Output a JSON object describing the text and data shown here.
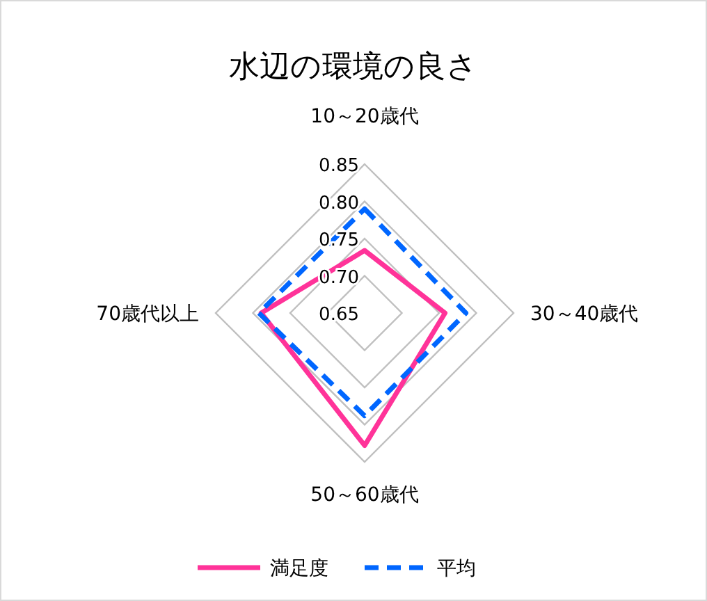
{
  "chart_data": {
    "type": "radar",
    "title": "水辺の環境の良さ",
    "categories": [
      "10～20歳代",
      "30～40歳代",
      "50～60歳代",
      "70歳代以上"
    ],
    "series": [
      {
        "name": "満足度",
        "color": "#ff3399",
        "values": [
          0.734,
          0.758,
          0.828,
          0.789
        ],
        "line_style": "solid"
      },
      {
        "name": "平均",
        "color": "#0066ff",
        "values": [
          0.79,
          0.786,
          0.788,
          0.792
        ],
        "line_style": "dashed"
      }
    ],
    "ylim": [
      0.65,
      0.85
    ],
    "yticks": [
      {
        "value": 0.65,
        "label": "0.65"
      },
      {
        "value": 0.7,
        "label": "0.70"
      },
      {
        "value": 0.75,
        "label": "0.75"
      },
      {
        "value": 0.8,
        "label": "0.80"
      },
      {
        "value": 0.85,
        "label": "0.85"
      }
    ],
    "grid": true,
    "legend": "bottom",
    "marker": "none"
  }
}
